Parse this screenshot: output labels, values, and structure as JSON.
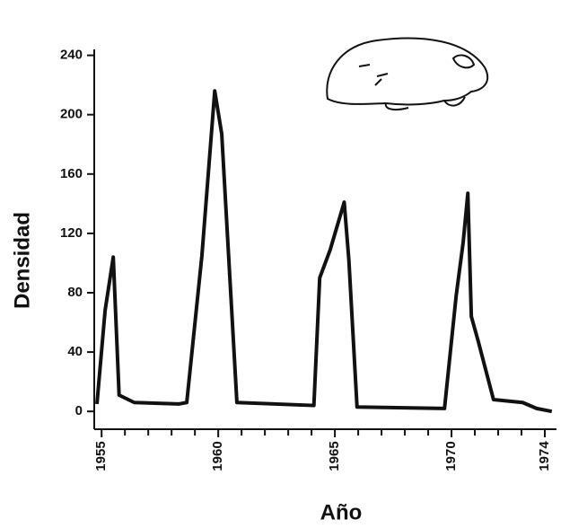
{
  "chart_data": {
    "type": "line",
    "x_label": "Año",
    "y_label": "Densidad",
    "x": [
      1954.8,
      1955.15,
      1955.5,
      1955.75,
      1956.4,
      1958.3,
      1958.65,
      1959.3,
      1959.85,
      1960.15,
      1960.8,
      1964.1,
      1964.35,
      1964.8,
      1965.4,
      1965.6,
      1965.95,
      1969.7,
      1970.2,
      1970.5,
      1970.7,
      1970.85,
      1971.15,
      1971.8,
      1973.05,
      1973.65,
      1974.3
    ],
    "series": [
      {
        "color": "#111111",
        "values": [
          5,
          68,
          104,
          11,
          6,
          5,
          6,
          105,
          216,
          187,
          6,
          4,
          90,
          109,
          141,
          102,
          3,
          2,
          78,
          114,
          147,
          64,
          47,
          8,
          6,
          2,
          0
        ]
      }
    ],
    "xlim": [
      1954.8,
      1974.5
    ],
    "xticks": [
      1955,
      1960,
      1965,
      1970,
      1974
    ],
    "xminorticks": [
      1956,
      1957,
      1958,
      1959,
      1961,
      1962,
      1963,
      1964,
      1966,
      1967,
      1968,
      1969,
      1971,
      1972,
      1973
    ],
    "ylim": [
      -12,
      244
    ],
    "yticks": [
      0,
      40,
      80,
      120,
      160,
      200,
      240
    ],
    "grid": false
  }
}
